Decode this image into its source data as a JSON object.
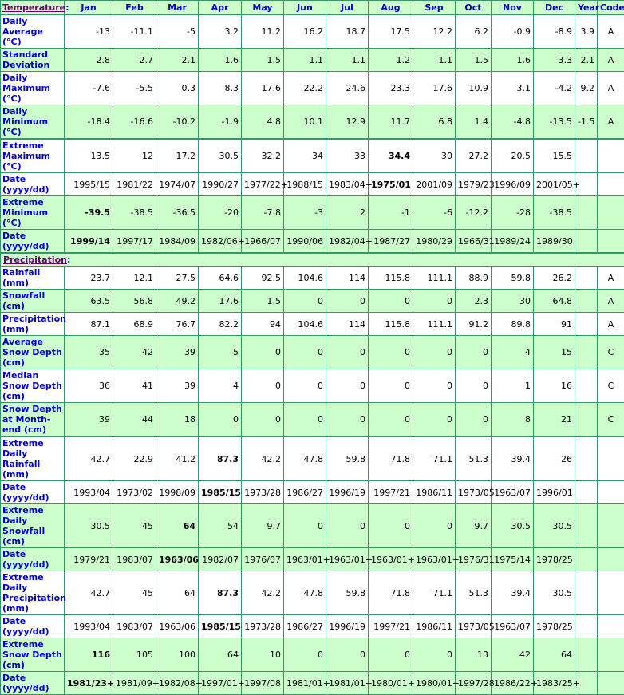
{
  "header": {
    "section": "Temperature",
    "months": [
      "Jan",
      "Feb",
      "Mar",
      "Apr",
      "May",
      "Jun",
      "Jul",
      "Aug",
      "Sep",
      "Oct",
      "Nov",
      "Dec"
    ],
    "year": "Year",
    "code": "Code"
  },
  "temperature_rows": [
    {
      "label": "Daily Average (°C)",
      "values": [
        "-13",
        "-11.1",
        "-5",
        "3.2",
        "11.2",
        "16.2",
        "18.7",
        "17.5",
        "12.2",
        "6.2",
        "-0.9",
        "-8.9"
      ],
      "year": "3.9",
      "code": "A",
      "bold": -1,
      "shade": "w"
    },
    {
      "label": "Standard Deviation",
      "values": [
        "2.8",
        "2.7",
        "2.1",
        "1.6",
        "1.5",
        "1.1",
        "1.1",
        "1.2",
        "1.1",
        "1.5",
        "1.6",
        "3.3"
      ],
      "year": "2.1",
      "code": "A",
      "bold": -1,
      "shade": "g"
    },
    {
      "label": "Daily Maximum (°C)",
      "values": [
        "-7.6",
        "-5.5",
        "0.3",
        "8.3",
        "17.6",
        "22.2",
        "24.6",
        "23.3",
        "17.6",
        "10.9",
        "3.1",
        "-4.2"
      ],
      "year": "9.2",
      "code": "A",
      "bold": -1,
      "shade": "w"
    },
    {
      "label": "Daily Minimum (°C)",
      "values": [
        "-18.4",
        "-16.6",
        "-10.2",
        "-1.9",
        "4.8",
        "10.1",
        "12.9",
        "11.7",
        "6.8",
        "1.4",
        "-4.8",
        "-13.5"
      ],
      "year": "-1.5",
      "code": "A",
      "bold": -1,
      "shade": "g"
    },
    {
      "label": "Extreme Maximum (°C)",
      "values": [
        "13.5",
        "12",
        "17.2",
        "30.5",
        "32.2",
        "34",
        "33",
        "34.4",
        "30",
        "27.2",
        "20.5",
        "15.5"
      ],
      "year": "",
      "code": "",
      "bold": 7,
      "shade": "w",
      "top": true
    },
    {
      "label": "Date (yyyy/dd)",
      "values": [
        "1995/15",
        "1981/22",
        "1974/07",
        "1990/27",
        "1977/22+",
        "1988/15",
        "1983/04+",
        "1975/01",
        "2001/09",
        "1979/23",
        "1996/09",
        "2001/05+"
      ],
      "year": "",
      "code": "",
      "bold": 7,
      "shade": "w"
    },
    {
      "label": "Extreme Minimum (°C)",
      "values": [
        "-39.5",
        "-38.5",
        "-36.5",
        "-20",
        "-7.8",
        "-3",
        "2",
        "-1",
        "-6",
        "-12.2",
        "-28",
        "-38.5"
      ],
      "year": "",
      "code": "",
      "bold": 0,
      "shade": "g"
    },
    {
      "label": "Date (yyyy/dd)",
      "values": [
        "1999/14",
        "1997/17",
        "1984/09",
        "1982/06+",
        "1966/07",
        "1990/06",
        "1982/04+",
        "1987/27",
        "1980/29",
        "1966/31",
        "1989/24",
        "1989/30"
      ],
      "year": "",
      "code": "",
      "bold": 0,
      "shade": "g"
    }
  ],
  "precipitation_section": "Precipitation",
  "precipitation_rows": [
    {
      "label": "Rainfall (mm)",
      "values": [
        "23.7",
        "12.1",
        "27.5",
        "64.6",
        "92.5",
        "104.6",
        "114",
        "115.8",
        "111.1",
        "88.9",
        "59.8",
        "26.2"
      ],
      "year": "",
      "code": "A",
      "bold": -1,
      "shade": "w"
    },
    {
      "label": "Snowfall (cm)",
      "values": [
        "63.5",
        "56.8",
        "49.2",
        "17.6",
        "1.5",
        "0",
        "0",
        "0",
        "0",
        "2.3",
        "30",
        "64.8"
      ],
      "year": "",
      "code": "A",
      "bold": -1,
      "shade": "g"
    },
    {
      "label": "Precipitation (mm)",
      "values": [
        "87.1",
        "68.9",
        "76.7",
        "82.2",
        "94",
        "104.6",
        "114",
        "115.8",
        "111.1",
        "91.2",
        "89.8",
        "91"
      ],
      "year": "",
      "code": "A",
      "bold": -1,
      "shade": "w"
    },
    {
      "label": "Average Snow Depth (cm)",
      "values": [
        "35",
        "42",
        "39",
        "5",
        "0",
        "0",
        "0",
        "0",
        "0",
        "0",
        "4",
        "15"
      ],
      "year": "",
      "code": "C",
      "bold": -1,
      "shade": "g"
    },
    {
      "label": "Median Snow Depth (cm)",
      "values": [
        "36",
        "41",
        "39",
        "4",
        "0",
        "0",
        "0",
        "0",
        "0",
        "0",
        "1",
        "16"
      ],
      "year": "",
      "code": "C",
      "bold": -1,
      "shade": "w"
    },
    {
      "label": "Snow Depth at Month-end (cm)",
      "values": [
        "39",
        "44",
        "18",
        "0",
        "0",
        "0",
        "0",
        "0",
        "0",
        "0",
        "8",
        "21"
      ],
      "year": "",
      "code": "C",
      "bold": -1,
      "shade": "g"
    },
    {
      "label": "Extreme Daily Rainfall (mm)",
      "values": [
        "42.7",
        "22.9",
        "41.2",
        "87.3",
        "42.2",
        "47.8",
        "59.8",
        "71.8",
        "71.1",
        "51.3",
        "39.4",
        "26"
      ],
      "year": "",
      "code": "",
      "bold": 3,
      "shade": "w",
      "top": true
    },
    {
      "label": "Date (yyyy/dd)",
      "values": [
        "1993/04",
        "1973/02",
        "1998/09",
        "1985/15",
        "1973/28",
        "1986/27",
        "1996/19",
        "1997/21",
        "1986/11",
        "1973/05",
        "1963/07",
        "1996/01"
      ],
      "year": "",
      "code": "",
      "bold": 3,
      "shade": "w"
    },
    {
      "label": "Extreme Daily Snowfall (cm)",
      "values": [
        "30.5",
        "45",
        "64",
        "54",
        "9.7",
        "0",
        "0",
        "0",
        "0",
        "9.7",
        "30.5",
        "30.5"
      ],
      "year": "",
      "code": "",
      "bold": 2,
      "shade": "g"
    },
    {
      "label": "Date (yyyy/dd)",
      "values": [
        "1979/21",
        "1983/07",
        "1963/06",
        "1982/07",
        "1976/07",
        "1963/01+",
        "1963/01+",
        "1963/01+",
        "1963/01+",
        "1976/31",
        "1975/14",
        "1978/25"
      ],
      "year": "",
      "code": "",
      "bold": 2,
      "shade": "g"
    },
    {
      "label": "Extreme Daily Precipitation (mm)",
      "values": [
        "42.7",
        "45",
        "64",
        "87.3",
        "42.2",
        "47.8",
        "59.8",
        "71.8",
        "71.1",
        "51.3",
        "39.4",
        "30.5"
      ],
      "year": "",
      "code": "",
      "bold": 3,
      "shade": "w"
    },
    {
      "label": "Date (yyyy/dd)",
      "values": [
        "1993/04",
        "1983/07",
        "1963/06",
        "1985/15",
        "1973/28",
        "1986/27",
        "1996/19",
        "1997/21",
        "1986/11",
        "1973/05",
        "1963/07",
        "1978/25"
      ],
      "year": "",
      "code": "",
      "bold": 3,
      "shade": "w"
    },
    {
      "label": "Extreme Snow Depth (cm)",
      "values": [
        "116",
        "105",
        "100",
        "64",
        "10",
        "0",
        "0",
        "0",
        "0",
        "13",
        "42",
        "64"
      ],
      "year": "",
      "code": "",
      "bold": 0,
      "shade": "g"
    },
    {
      "label": "Date (yyyy/dd)",
      "values": [
        "1981/23+",
        "1981/09+",
        "1982/08+",
        "1997/01+",
        "1997/08",
        "1981/01+",
        "1981/01+",
        "1980/01+",
        "1980/01+",
        "1997/28",
        "1986/22+",
        "1983/25+"
      ],
      "year": "",
      "code": "",
      "bold": 0,
      "shade": "g"
    }
  ],
  "colors": {
    "header_bg": "#ccffcc",
    "border": "#339966",
    "label": "#0000cc",
    "section_link": "#660066"
  }
}
